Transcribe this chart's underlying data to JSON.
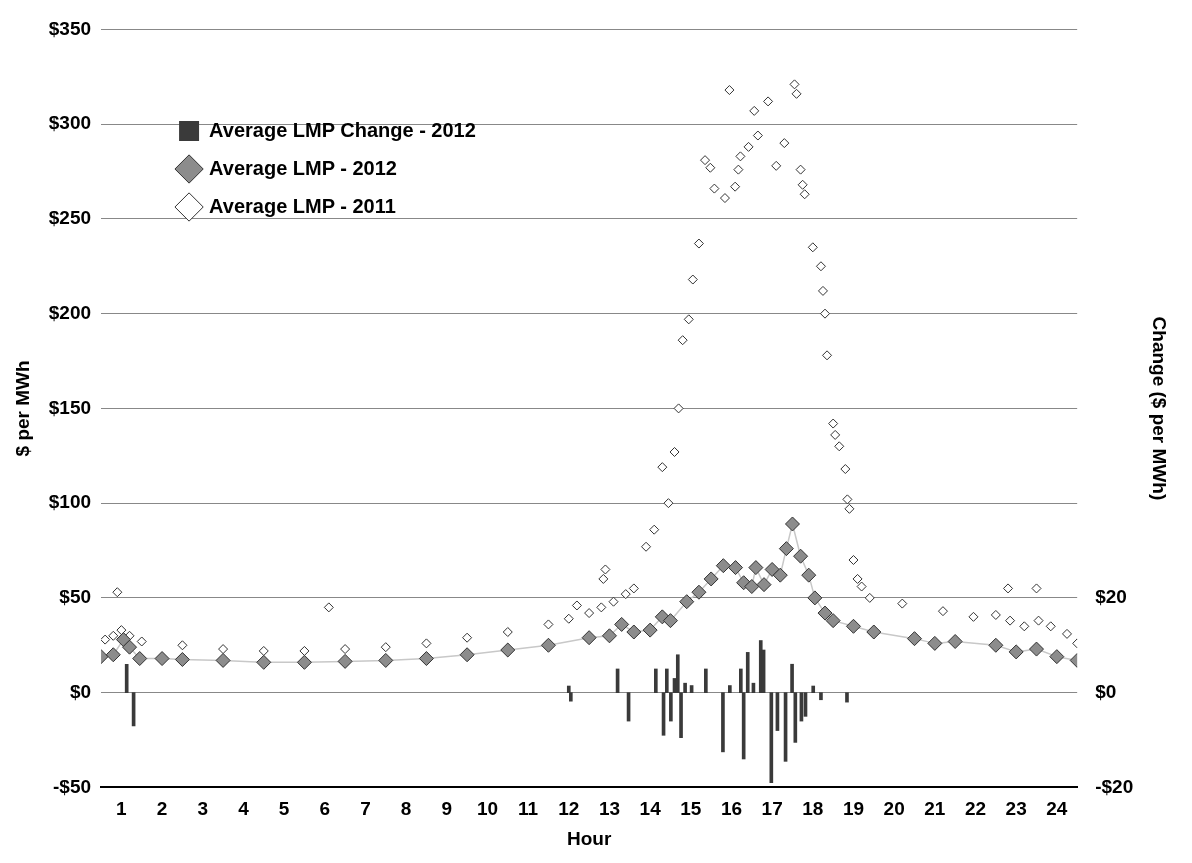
{
  "chart_data": {
    "type": "line",
    "xlabel": "Hour",
    "ylabel": "$ per MWh",
    "y2label": "Change ($ per MWh)",
    "xlim": [
      0,
      24
    ],
    "xticks": [
      {
        "value": 0.5,
        "label": "1"
      },
      {
        "value": 1.5,
        "label": "2"
      },
      {
        "value": 2.5,
        "label": "3"
      },
      {
        "value": 3.5,
        "label": "4"
      },
      {
        "value": 4.5,
        "label": "5"
      },
      {
        "value": 5.5,
        "label": "6"
      },
      {
        "value": 6.5,
        "label": "7"
      },
      {
        "value": 7.5,
        "label": "8"
      },
      {
        "value": 8.5,
        "label": "9"
      },
      {
        "value": 9.5,
        "label": "10"
      },
      {
        "value": 10.5,
        "label": "11"
      },
      {
        "value": 11.5,
        "label": "12"
      },
      {
        "value": 12.5,
        "label": "13"
      },
      {
        "value": 13.5,
        "label": "14"
      },
      {
        "value": 14.5,
        "label": "15"
      },
      {
        "value": 15.5,
        "label": "16"
      },
      {
        "value": 16.5,
        "label": "17"
      },
      {
        "value": 17.5,
        "label": "18"
      },
      {
        "value": 18.5,
        "label": "19"
      },
      {
        "value": 19.5,
        "label": "20"
      },
      {
        "value": 20.5,
        "label": "21"
      },
      {
        "value": 21.5,
        "label": "22"
      },
      {
        "value": 22.5,
        "label": "23"
      },
      {
        "value": 23.5,
        "label": "24"
      }
    ],
    "ylim": [
      -50,
      350
    ],
    "yticks": [
      {
        "value": -50,
        "label": "-$50"
      },
      {
        "value": 0,
        "label": "$0"
      },
      {
        "value": 50,
        "label": "$50"
      },
      {
        "value": 100,
        "label": "$100"
      },
      {
        "value": 150,
        "label": "$150"
      },
      {
        "value": 200,
        "label": "$200"
      },
      {
        "value": 250,
        "label": "$250"
      },
      {
        "value": 300,
        "label": "$300"
      },
      {
        "value": 350,
        "label": "$350"
      }
    ],
    "y2lim": [
      -20,
      140
    ],
    "y2ticks": [
      {
        "value": -20,
        "label": "-$20"
      },
      {
        "value": 0,
        "label": "$0"
      },
      {
        "value": 20,
        "label": "$20"
      }
    ],
    "grid": "y",
    "legend": "top left",
    "series": [
      {
        "name": "Average LMP Change - 2012",
        "type": "bar",
        "axis": "y2",
        "color": "#3a3a3a",
        "x": [
          0.63,
          0.8,
          11.5,
          11.55,
          12.7,
          12.97,
          13.64,
          13.83,
          13.91,
          14.01,
          14.1,
          14.18,
          14.26,
          14.36,
          14.52,
          14.87,
          15.29,
          15.46,
          15.73,
          15.8,
          15.9,
          16.04,
          16.22,
          16.29,
          16.48,
          16.63,
          16.83,
          16.99,
          17.07,
          17.22,
          17.32,
          17.51,
          17.7,
          18.34
        ],
        "values": [
          6,
          -7,
          1.4,
          -1.8,
          5,
          -6,
          5,
          -9,
          5,
          -6,
          3,
          8,
          -9.5,
          2,
          1.5,
          5,
          -12.5,
          1.5,
          5,
          -14,
          8.5,
          2,
          11,
          9,
          -19,
          -8,
          -14.5,
          6,
          -10.5,
          -6,
          -5,
          1.4,
          -1.5,
          -2
        ]
      },
      {
        "name": "Average LMP - 2012",
        "color": "#8c8c8c",
        "marker": "diamond",
        "x": [
          0,
          0.3,
          0.55,
          0.7,
          0.95,
          1.5,
          2,
          3,
          4,
          5,
          6,
          7,
          8,
          9,
          10,
          11,
          12,
          12.5,
          12.8,
          13.1,
          13.5,
          13.8,
          14,
          14.4,
          14.7,
          15,
          15.3,
          15.6,
          15.8,
          16,
          16.1,
          16.3,
          16.5,
          16.7,
          16.85,
          17,
          17.2,
          17.4,
          17.55,
          17.8,
          18,
          18.5,
          19,
          20,
          20.5,
          21,
          22,
          22.5,
          23,
          23.5,
          24
        ],
        "values": [
          19,
          20,
          28,
          24,
          18,
          18,
          17.5,
          17,
          16,
          16,
          16.5,
          17,
          18,
          20,
          22.5,
          25,
          29,
          30,
          36,
          32,
          33,
          40,
          38,
          48,
          53,
          60,
          67,
          66,
          58,
          56,
          66,
          57,
          65,
          62,
          76,
          89,
          72,
          62,
          50,
          42,
          38,
          35,
          32,
          28.5,
          26,
          27,
          25,
          21.5,
          23,
          19,
          17
        ]
      },
      {
        "name": "Average LMP - 2011",
        "type": "scatter",
        "color": "#ffffff",
        "marker": "diamond",
        "x": [
          0.1,
          0.3,
          0.4,
          0.5,
          0.7,
          1,
          2,
          3,
          4,
          5,
          5.6,
          6,
          7,
          8,
          9,
          10,
          11,
          11.5,
          11.7,
          12,
          12.3,
          12.35,
          12.4,
          12.6,
          12.9,
          13.1,
          13.4,
          13.6,
          13.8,
          13.95,
          14.1,
          14.2,
          14.3,
          14.45,
          14.55,
          14.7,
          14.85,
          14.98,
          15.08,
          15.34,
          15.45,
          15.59,
          15.67,
          15.72,
          15.92,
          16.06,
          16.15,
          16.4,
          16.6,
          16.8,
          17.05,
          17.1,
          17.2,
          17.25,
          17.3,
          17.5,
          17.7,
          17.75,
          17.8,
          17.85,
          18,
          18.05,
          18.15,
          18.3,
          18.35,
          18.4,
          18.5,
          18.6,
          18.7,
          18.9,
          19.7,
          20.7,
          21.45,
          22,
          22.3,
          22.35,
          22.7,
          23,
          23.05,
          23.35,
          23.75,
          24
        ],
        "values": [
          28,
          30,
          53,
          33,
          30,
          27,
          25,
          23,
          22,
          22,
          45,
          23,
          24,
          26,
          29,
          32,
          36,
          39,
          46,
          42,
          45,
          60,
          65,
          48,
          52,
          55,
          77,
          86,
          119,
          100,
          127,
          150,
          186,
          197,
          218,
          237,
          281,
          277,
          266,
          261,
          318,
          267,
          276,
          283,
          288,
          307,
          294,
          312,
          278,
          290,
          321,
          316,
          276,
          268,
          263,
          235,
          225,
          212,
          200,
          178,
          142,
          136,
          130,
          118,
          102,
          97,
          70,
          60,
          56,
          50,
          47,
          43,
          40,
          41,
          55,
          38,
          35,
          55,
          38,
          35,
          31,
          26
        ]
      }
    ]
  }
}
